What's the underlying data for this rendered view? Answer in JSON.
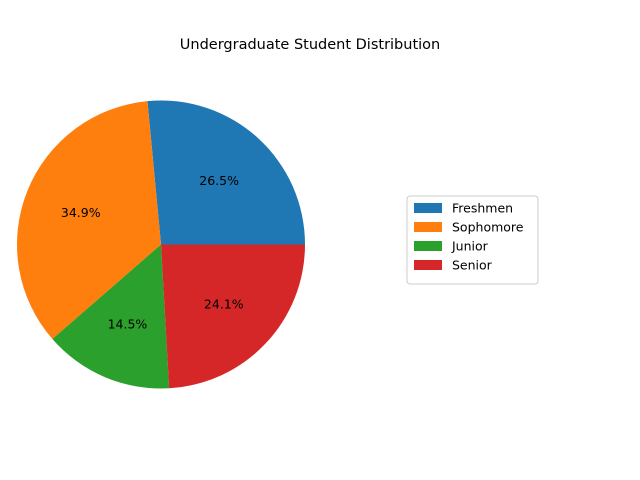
{
  "chart_data": {
    "type": "pie",
    "title": "Undergraduate Student Distribution",
    "categories": [
      "Freshmen",
      "Sophomore",
      "Junior",
      "Senior"
    ],
    "values": [
      26.5,
      34.9,
      14.5,
      24.1
    ],
    "labels": [
      "26.5%",
      "34.9%",
      "14.5%",
      "24.1%"
    ],
    "colors": [
      "#1f77b4",
      "#ff7f0e",
      "#2ca02c",
      "#d62728"
    ],
    "start_angle_deg": 0,
    "direction": "counterclockwise",
    "legend_position": "right"
  }
}
